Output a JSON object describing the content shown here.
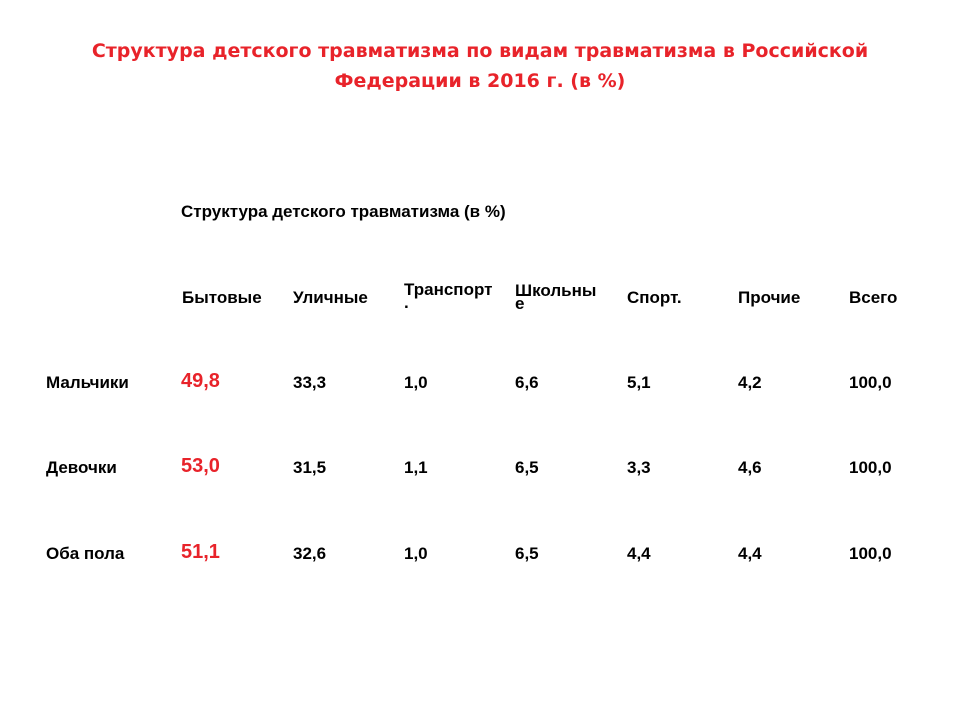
{
  "slide": {
    "title_line1": "Структура детского травматизма по видам травматизма в Российской",
    "title_line2": "Федерации в 2016 г. (в %)"
  },
  "table": {
    "caption": "Структура детского травматизма (в %)",
    "columns": [
      {
        "line1": "Бытовые",
        "line2": ""
      },
      {
        "line1": "Уличные",
        "line2": ""
      },
      {
        "line1": "Транспорт",
        "line2": "."
      },
      {
        "line1": "Школьны",
        "line2": "е"
      },
      {
        "line1": "Спорт.",
        "line2": ""
      },
      {
        "line1": "Прочие",
        "line2": ""
      },
      {
        "line1": "Всего",
        "line2": ""
      }
    ],
    "rows": [
      {
        "label": "Мальчики",
        "values": [
          "49,8",
          "33,3",
          "1,0",
          "6,6",
          "5,1",
          "4,2",
          "100,0"
        ]
      },
      {
        "label": "Девочки",
        "values": [
          "53,0",
          "31,5",
          "1,1",
          "6,5",
          "3,3",
          "4,6",
          "100,0"
        ]
      },
      {
        "label": "Оба пола",
        "values": [
          "51,1",
          "32,6",
          "1,0",
          "6,5",
          "4,4",
          "4,4",
          "100,0"
        ]
      }
    ]
  },
  "colors": {
    "title": "#e8232a",
    "highlight": "#e8232a",
    "text": "#000000"
  }
}
